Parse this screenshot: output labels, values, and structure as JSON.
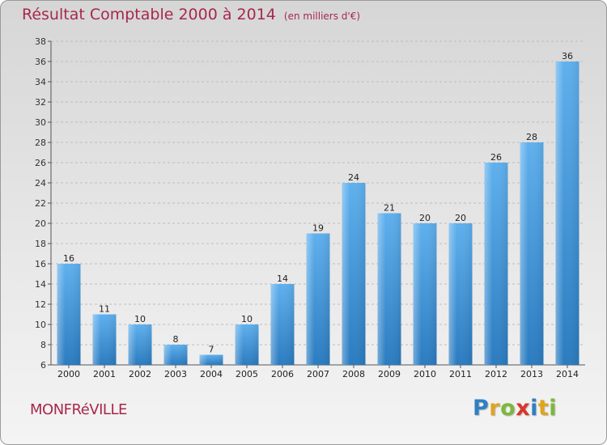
{
  "page": {
    "commune": "MONFRéVILLE",
    "brand_letters": [
      "P",
      "r",
      "o",
      "x",
      "i",
      "t",
      "i"
    ],
    "brand_colors": [
      "#2f7fc4",
      "#e0a51e",
      "#7cb83a",
      "#d8362b",
      "#2f7fc4",
      "#e0a51e",
      "#7cb83a"
    ]
  },
  "chart_data": {
    "type": "bar",
    "title": "Résultat Comptable 2000 à 2014",
    "subtitle": "(en milliers d'€)",
    "categories": [
      "2000",
      "2001",
      "2002",
      "2003",
      "2004",
      "2005",
      "2006",
      "2007",
      "2008",
      "2009",
      "2010",
      "2011",
      "2012",
      "2013",
      "2014"
    ],
    "values": [
      16,
      11,
      10,
      8,
      7,
      10,
      14,
      19,
      24,
      21,
      20,
      20,
      26,
      28,
      36
    ],
    "ylim": [
      6,
      38
    ],
    "yticks": [
      6,
      8,
      10,
      12,
      14,
      16,
      18,
      20,
      22,
      24,
      26,
      28,
      30,
      32,
      34,
      36,
      38
    ],
    "xlabel": "",
    "ylabel": "",
    "grid": true,
    "bar_color": "#3b8fd6",
    "title_color": "#a8284c"
  }
}
